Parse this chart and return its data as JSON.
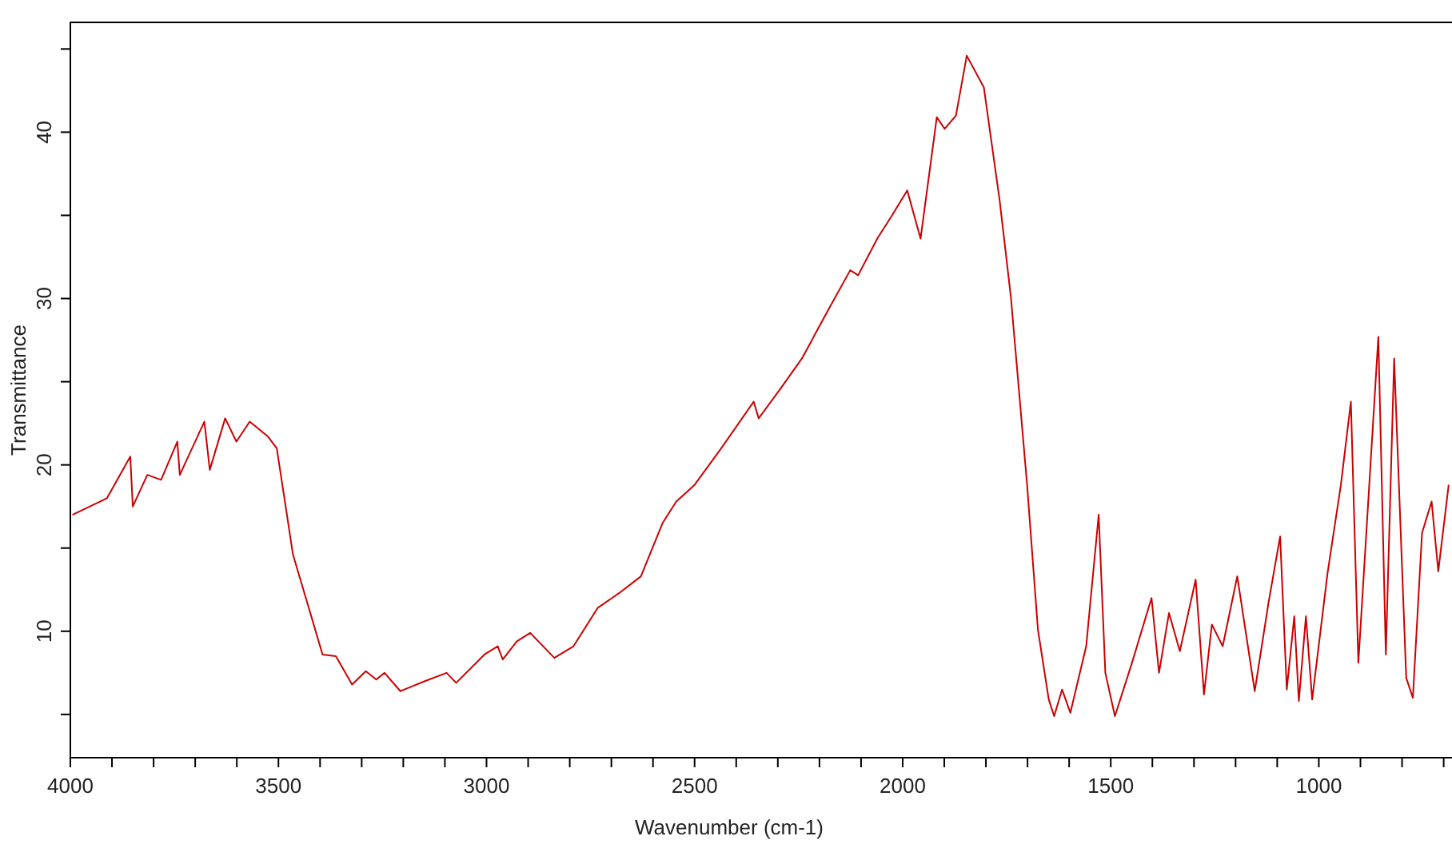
{
  "chart_data": {
    "type": "line",
    "xlabel": "Wavenumber (cm-1)",
    "ylabel": "Transmittance",
    "xlim": [
      4000,
      680
    ],
    "ylim": [
      2.4,
      46.6
    ],
    "xticks": [
      4000,
      {
        "value": 3900,
        "label": null
      },
      {
        "value": 3800,
        "label": null
      },
      {
        "value": 3700,
        "label": null
      },
      {
        "value": 3600,
        "label": null
      },
      3500,
      {
        "value": 3400,
        "label": null
      },
      {
        "value": 3300,
        "label": null
      },
      {
        "value": 3200,
        "label": null
      },
      {
        "value": 3100,
        "label": null
      },
      3000,
      {
        "value": 2900,
        "label": null
      },
      {
        "value": 2800,
        "label": null
      },
      {
        "value": 2700,
        "label": null
      },
      {
        "value": 2600,
        "label": null
      },
      2500,
      {
        "value": 2400,
        "label": null
      },
      {
        "value": 2300,
        "label": null
      },
      {
        "value": 2200,
        "label": null
      },
      {
        "value": 2100,
        "label": null
      },
      2000,
      {
        "value": 1900,
        "label": null
      },
      {
        "value": 1800,
        "label": null
      },
      {
        "value": 1700,
        "label": null
      },
      {
        "value": 1600,
        "label": null
      },
      1500,
      {
        "value": 1400,
        "label": null
      },
      {
        "value": 1300,
        "label": null
      },
      {
        "value": 1200,
        "label": null
      },
      {
        "value": 1100,
        "label": null
      },
      1000,
      {
        "value": 900,
        "label": null
      },
      {
        "value": 800,
        "label": null
      },
      {
        "value": 700,
        "label": null
      }
    ],
    "yticks": [
      {
        "value": 5,
        "label": null
      },
      10,
      {
        "value": 15,
        "label": null
      },
      20,
      {
        "value": 25,
        "label": null
      },
      30,
      {
        "value": 35,
        "label": null
      },
      40,
      {
        "value": 45,
        "label": null
      }
    ],
    "grid": false,
    "marker": "none",
    "line_style": "solid",
    "series": [
      {
        "color": "#cc0000",
        "x": [
          3995,
          3912,
          3856,
          3850,
          3815,
          3782,
          3743,
          3737,
          3678,
          3665,
          3628,
          3601,
          3569,
          3525,
          3504,
          3465,
          3427,
          3394,
          3362,
          3323,
          3290,
          3265,
          3245,
          3207,
          3148,
          3096,
          3073,
          3005,
          2973,
          2961,
          2927,
          2895,
          2837,
          2791,
          2733,
          2681,
          2629,
          2577,
          2544,
          2500,
          2436,
          2358,
          2346,
          2293,
          2242,
          2177,
          2126,
          2107,
          2061,
          2028,
          1989,
          1957,
          1918,
          1899,
          1872,
          1846,
          1805,
          1767,
          1740,
          1701,
          1675,
          1649,
          1636,
          1617,
          1597,
          1559,
          1529,
          1513,
          1490,
          1449,
          1402,
          1384,
          1360,
          1334,
          1296,
          1276,
          1257,
          1231,
          1196,
          1154,
          1121,
          1093,
          1077,
          1059,
          1048,
          1031,
          1016,
          979,
          947,
          923,
          905,
          857,
          839,
          819,
          790,
          774,
          752,
          729,
          713,
          688
        ],
        "values": [
          17.0,
          18.0,
          20.5,
          17.5,
          19.4,
          19.1,
          21.4,
          19.4,
          22.6,
          19.7,
          22.8,
          21.4,
          22.6,
          21.7,
          21.0,
          14.6,
          11.4,
          8.6,
          8.5,
          6.8,
          7.6,
          7.1,
          7.5,
          6.4,
          7.0,
          7.5,
          6.9,
          8.6,
          9.1,
          8.3,
          9.4,
          9.9,
          8.4,
          9.1,
          11.4,
          12.3,
          13.3,
          16.5,
          17.8,
          18.8,
          21.0,
          23.8,
          22.8,
          24.6,
          26.4,
          29.4,
          31.7,
          31.4,
          33.6,
          34.9,
          36.5,
          33.6,
          40.9,
          40.2,
          41.0,
          44.6,
          42.7,
          35.9,
          30.1,
          18.8,
          10.1,
          5.9,
          4.9,
          6.5,
          5.1,
          9.1,
          17.0,
          7.5,
          4.9,
          8.1,
          12.0,
          7.5,
          11.1,
          8.8,
          13.1,
          6.2,
          10.4,
          9.1,
          13.3,
          6.4,
          11.7,
          15.7,
          6.5,
          10.9,
          5.8,
          10.9,
          5.9,
          13.5,
          18.8,
          23.8,
          8.1,
          27.7,
          8.6,
          26.4,
          7.2,
          6.0,
          15.9,
          17.8,
          13.6,
          18.8
        ]
      }
    ]
  }
}
